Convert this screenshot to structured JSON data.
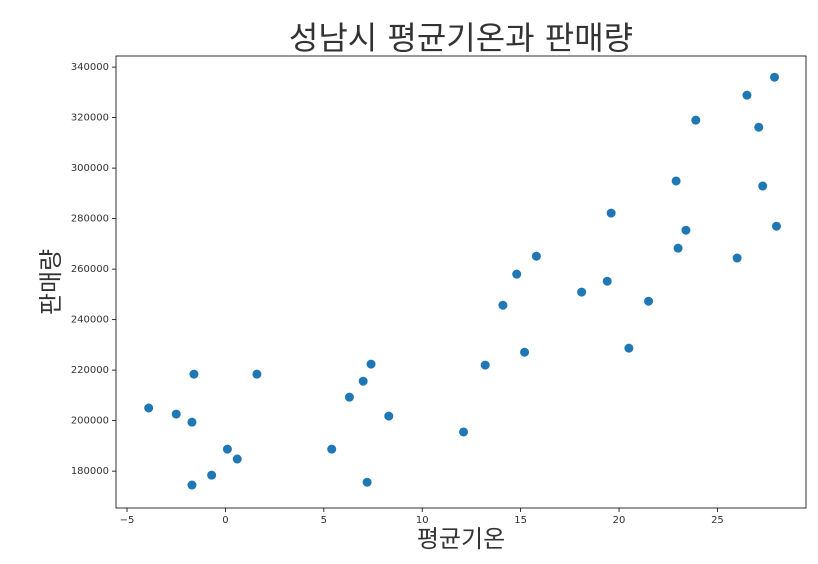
{
  "chart_data": {
    "type": "scatter",
    "title": "성남시 평균기온과 판매량",
    "xlabel": "평균기온",
    "ylabel": "판매량",
    "color": "#1f77b4",
    "x": [
      -3.9,
      -2.5,
      -1.6,
      -1.7,
      -1.7,
      -0.7,
      0.1,
      0.6,
      1.6,
      5.4,
      6.3,
      7.0,
      7.4,
      7.2,
      8.3,
      12.1,
      13.2,
      14.1,
      14.8,
      15.2,
      15.8,
      18.1,
      19.4,
      19.6,
      20.5,
      21.5,
      22.9,
      23.0,
      23.4,
      23.9,
      26.0,
      26.5,
      27.1,
      27.3,
      27.9,
      28.0
    ],
    "values": [
      205000,
      202600,
      218400,
      199400,
      174500,
      178400,
      188700,
      184800,
      218400,
      188700,
      209300,
      215600,
      222400,
      175600,
      201800,
      195500,
      222000,
      245700,
      258000,
      227100,
      265100,
      250900,
      255200,
      282200,
      228700,
      247300,
      294900,
      268300,
      275400,
      319000,
      264400,
      328900,
      316200,
      292900,
      336000,
      277000
    ],
    "xlim": [
      -5.56,
      29.5
    ],
    "ylim": [
      165400,
      344400
    ],
    "xticks": [
      {
        "value": -5,
        "label": "−5"
      },
      0,
      5,
      10,
      15,
      20,
      25
    ],
    "yticks": [
      180000,
      200000,
      220000,
      240000,
      260000,
      280000,
      300000,
      320000,
      340000
    ]
  }
}
